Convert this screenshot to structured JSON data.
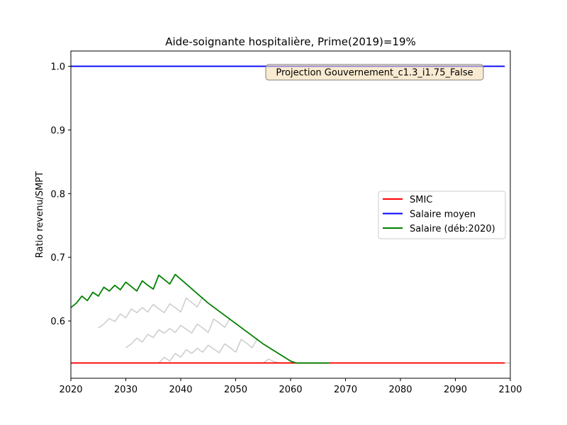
{
  "chart_data": {
    "type": "line",
    "title": "Aide-soignante hospitalière, Prime(2019)=19%",
    "xlabel": "",
    "ylabel": "Ratio revenu/SMPT",
    "xlim": [
      2020,
      2100
    ],
    "ylim": [
      0.51,
      1.024
    ],
    "xticks": [
      "2020",
      "2030",
      "2040",
      "2050",
      "2060",
      "2070",
      "2080",
      "2090",
      "2100"
    ],
    "yticks": [
      "0.6",
      "0.7",
      "0.8",
      "0.9",
      "1.0"
    ],
    "annotation": "Projection Gouvernement_c1.3_i1.75_False",
    "legend_position": "center-right",
    "grid": false,
    "series": [
      {
        "name": "SMIC",
        "color": "#ff0000",
        "x": [
          2020,
          2099
        ],
        "y": [
          0.534,
          0.534
        ]
      },
      {
        "name": "Salaire moyen",
        "color": "#0000ff",
        "x": [
          2020,
          2099
        ],
        "y": [
          1.0,
          1.0
        ]
      },
      {
        "name": "Salaire (déb:2020)",
        "color": "#008000",
        "x": [
          2020,
          2021,
          2022,
          2023,
          2024,
          2025,
          2026,
          2027,
          2028,
          2029,
          2030,
          2031,
          2032,
          2033,
          2034,
          2035,
          2036,
          2037,
          2038,
          2039,
          2045,
          2050,
          2055,
          2060,
          2061,
          2067
        ],
        "y": [
          0.621,
          0.628,
          0.639,
          0.632,
          0.645,
          0.639,
          0.653,
          0.647,
          0.656,
          0.649,
          0.661,
          0.654,
          0.647,
          0.663,
          0.656,
          0.65,
          0.672,
          0.665,
          0.658,
          0.673,
          0.628,
          0.596,
          0.564,
          0.537,
          0.534,
          0.534
        ]
      }
    ],
    "background_series": [
      {
        "color": "#cccccc",
        "x": [
          2025,
          2026,
          2027,
          2028,
          2029,
          2030,
          2031,
          2032,
          2033,
          2034,
          2035,
          2036,
          2037,
          2038,
          2039,
          2040,
          2041,
          2042,
          2043,
          2044
        ],
        "y": [
          0.589,
          0.595,
          0.604,
          0.599,
          0.611,
          0.605,
          0.619,
          0.613,
          0.621,
          0.614,
          0.626,
          0.619,
          0.613,
          0.627,
          0.621,
          0.614,
          0.636,
          0.629,
          0.622,
          0.638
        ]
      },
      {
        "color": "#cccccc",
        "x": [
          2030,
          2031,
          2032,
          2033,
          2034,
          2035,
          2036,
          2037,
          2038,
          2039,
          2040,
          2041,
          2042,
          2043,
          2044,
          2045,
          2046,
          2047,
          2048,
          2049
        ],
        "y": [
          0.558,
          0.564,
          0.573,
          0.567,
          0.579,
          0.574,
          0.586,
          0.581,
          0.588,
          0.582,
          0.593,
          0.587,
          0.581,
          0.595,
          0.589,
          0.582,
          0.603,
          0.597,
          0.59,
          0.604
        ]
      },
      {
        "color": "#cccccc",
        "x": [
          2035,
          2036,
          2037,
          2038,
          2039,
          2040,
          2041,
          2042,
          2043,
          2044,
          2045,
          2046,
          2047,
          2048,
          2049,
          2050,
          2051,
          2052,
          2053,
          2054
        ],
        "y": [
          0.534,
          0.534,
          0.543,
          0.537,
          0.549,
          0.543,
          0.555,
          0.549,
          0.557,
          0.551,
          0.562,
          0.556,
          0.55,
          0.564,
          0.558,
          0.551,
          0.571,
          0.565,
          0.558,
          0.573
        ]
      },
      {
        "color": "#cccccc",
        "x": [
          2040,
          2054,
          2055,
          2056,
          2057,
          2058,
          2059,
          2060
        ],
        "y": [
          0.534,
          0.534,
          0.534,
          0.54,
          0.536,
          0.534,
          0.534,
          0.534
        ]
      },
      {
        "color": "#cccccc",
        "x": [
          2045,
          2100
        ],
        "y": [
          0.534,
          0.534
        ]
      }
    ]
  }
}
